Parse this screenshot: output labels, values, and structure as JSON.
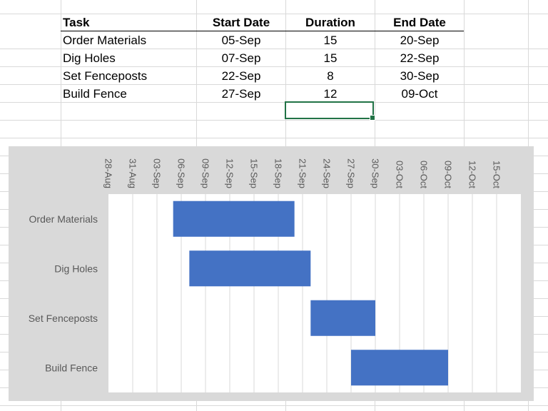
{
  "table": {
    "headers": [
      "Task",
      "Start Date",
      "Duration",
      "End Date"
    ],
    "rows": [
      [
        "Order Materials",
        "05-Sep",
        "15",
        "20-Sep"
      ],
      [
        "Dig Holes",
        "07-Sep",
        "15",
        "22-Sep"
      ],
      [
        "Set Fenceposts",
        "22-Sep",
        "8",
        "30-Sep"
      ],
      [
        "Build Fence",
        "27-Sep",
        "12",
        "09-Oct"
      ]
    ]
  },
  "colors": {
    "bar": "#4472c4",
    "chart_background": "#d9d9d9",
    "plot_background": "#ffffff",
    "gridline": "#d9d9d9",
    "selection": "#217346"
  },
  "chart_data": {
    "type": "bar",
    "orientation": "horizontal-gantt",
    "categories": [
      "Order Materials",
      "Dig Holes",
      "Set Fenceposts",
      "Build Fence"
    ],
    "series": [
      {
        "start": [
          "2023-09-05",
          "2023-09-07",
          "2023-09-22",
          "2023-09-27"
        ],
        "end": [
          "2023-09-20",
          "2023-09-22",
          "2023-09-30",
          "2023-10-09"
        ],
        "duration_days": [
          15,
          15,
          8,
          12
        ]
      }
    ],
    "x_ticks": [
      "28-Aug",
      "31-Aug",
      "03-Sep",
      "06-Sep",
      "09-Sep",
      "12-Sep",
      "15-Sep",
      "18-Sep",
      "21-Sep",
      "24-Sep",
      "27-Sep",
      "30-Sep",
      "03-Oct",
      "06-Oct",
      "09-Oct",
      "12-Oct",
      "15-Oct"
    ],
    "xlim": [
      "2023-08-28",
      "2023-10-18"
    ],
    "x_axis_position": "top",
    "tick_label_rotation": "vertical",
    "grid": true,
    "legend": "none",
    "title": "",
    "xlabel": "",
    "ylabel": ""
  }
}
